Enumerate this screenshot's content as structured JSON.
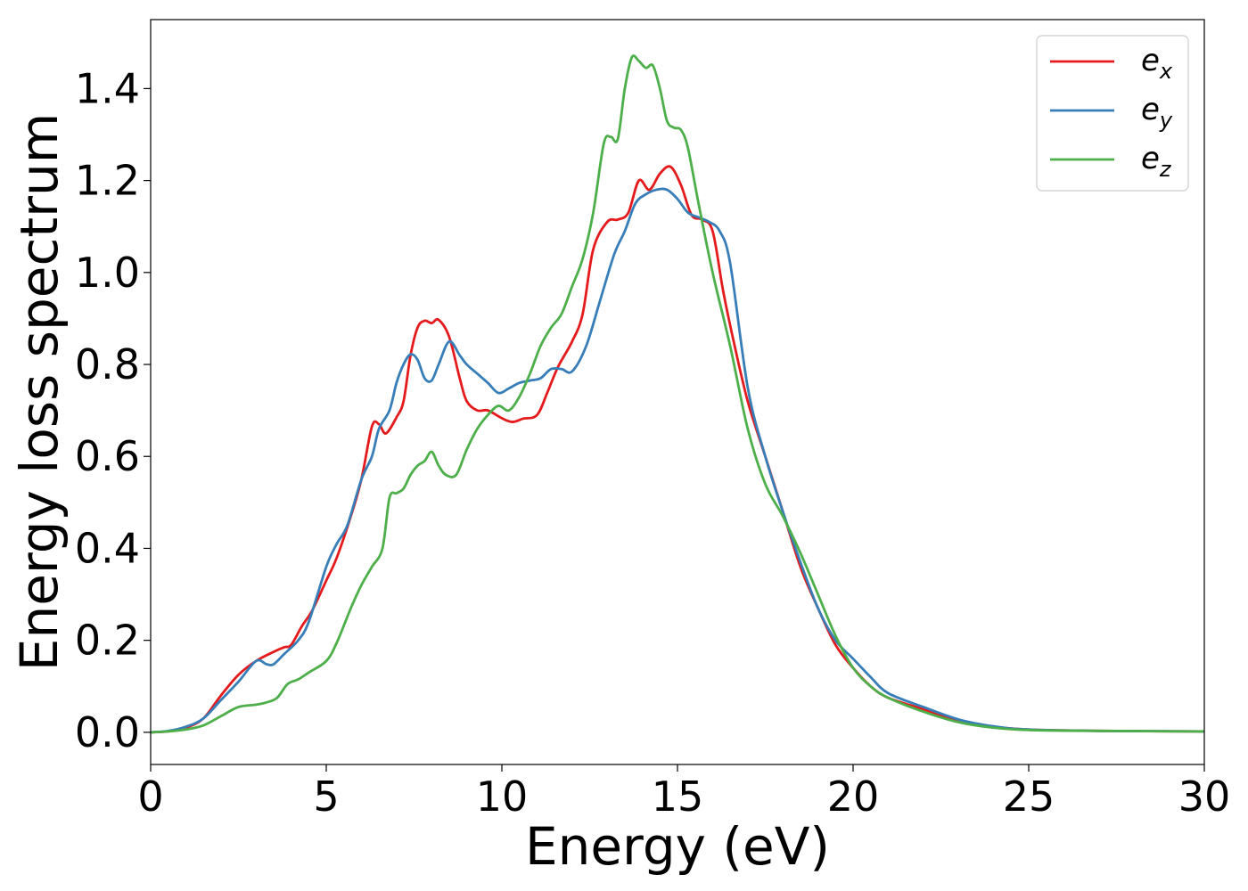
{
  "chart_data": {
    "type": "line",
    "title": "",
    "xlabel": "Energy (eV)",
    "ylabel": "Energy loss spectrum",
    "xlim": [
      0,
      30
    ],
    "ylim": [
      -0.07,
      1.55
    ],
    "xticks": [
      0,
      5,
      10,
      15,
      20,
      25,
      30
    ],
    "yticks": [
      0.0,
      0.2,
      0.4,
      0.6,
      0.8,
      1.0,
      1.2,
      1.4
    ],
    "grid": false,
    "legend_position": "top-right",
    "series": [
      {
        "name": "e_x",
        "base": "e",
        "sub": "x",
        "color": "#e41a1c",
        "x": [
          0,
          0.5,
          1,
          1.5,
          2,
          2.5,
          3,
          3.5,
          3.8,
          4,
          4.3,
          4.6,
          5,
          5.3,
          5.7,
          6,
          6.3,
          6.5,
          6.7,
          7,
          7.2,
          7.4,
          7.6,
          7.8,
          8,
          8.2,
          8.5,
          8.8,
          9,
          9.3,
          9.6,
          10,
          10.3,
          10.6,
          11,
          11.3,
          11.6,
          12,
          12.3,
          12.6,
          13,
          13.3,
          13.6,
          13.9,
          14.2,
          14.5,
          14.8,
          15.1,
          15.4,
          15.7,
          16,
          16.3,
          16.6,
          17,
          17.5,
          18,
          18.5,
          19,
          19.5,
          20,
          20.5,
          21,
          22,
          23,
          24,
          25,
          27,
          30
        ],
        "values": [
          0,
          0.002,
          0.01,
          0.03,
          0.08,
          0.125,
          0.155,
          0.175,
          0.185,
          0.19,
          0.23,
          0.265,
          0.33,
          0.38,
          0.47,
          0.55,
          0.665,
          0.67,
          0.65,
          0.685,
          0.72,
          0.82,
          0.88,
          0.895,
          0.89,
          0.897,
          0.86,
          0.77,
          0.72,
          0.7,
          0.7,
          0.683,
          0.675,
          0.682,
          0.69,
          0.74,
          0.795,
          0.85,
          0.91,
          1.05,
          1.11,
          1.115,
          1.13,
          1.2,
          1.18,
          1.215,
          1.23,
          1.19,
          1.125,
          1.115,
          1.09,
          0.96,
          0.85,
          0.72,
          0.6,
          0.48,
          0.36,
          0.27,
          0.19,
          0.14,
          0.1,
          0.075,
          0.05,
          0.025,
          0.012,
          0.006,
          0.003,
          0.002
        ]
      },
      {
        "name": "e_y",
        "base": "e",
        "sub": "y",
        "color": "#377eb8",
        "x": [
          0,
          0.5,
          1,
          1.5,
          2,
          2.5,
          3,
          3.3,
          3.5,
          3.8,
          4.2,
          4.5,
          5,
          5.3,
          5.6,
          6,
          6.3,
          6.5,
          6.8,
          7,
          7.2,
          7.4,
          7.6,
          7.8,
          8,
          8.2,
          8.5,
          8.8,
          9,
          9.3,
          9.6,
          9.9,
          10.2,
          10.5,
          10.8,
          11.1,
          11.4,
          11.7,
          12,
          12.4,
          12.8,
          13.2,
          13.5,
          13.8,
          14.1,
          14.4,
          14.7,
          15,
          15.3,
          15.6,
          15.9,
          16.2,
          16.5,
          17,
          17.5,
          18,
          18.5,
          19,
          19.5,
          20,
          20.5,
          21,
          22,
          23,
          24,
          25,
          27,
          30
        ],
        "values": [
          0,
          0.003,
          0.012,
          0.03,
          0.07,
          0.11,
          0.155,
          0.148,
          0.148,
          0.17,
          0.2,
          0.24,
          0.36,
          0.41,
          0.45,
          0.55,
          0.6,
          0.66,
          0.7,
          0.76,
          0.8,
          0.822,
          0.81,
          0.77,
          0.765,
          0.8,
          0.85,
          0.82,
          0.8,
          0.78,
          0.76,
          0.738,
          0.748,
          0.76,
          0.765,
          0.77,
          0.79,
          0.79,
          0.785,
          0.84,
          0.94,
          1.04,
          1.09,
          1.15,
          1.17,
          1.18,
          1.18,
          1.16,
          1.13,
          1.12,
          1.11,
          1.09,
          1.02,
          0.75,
          0.6,
          0.48,
          0.37,
          0.27,
          0.2,
          0.16,
          0.12,
          0.085,
          0.055,
          0.028,
          0.013,
          0.006,
          0.003,
          0.002
        ]
      },
      {
        "name": "e_z",
        "base": "e",
        "sub": "z",
        "color": "#4daf4a",
        "x": [
          0,
          0.5,
          1,
          1.5,
          2,
          2.5,
          3,
          3.3,
          3.6,
          3.9,
          4.2,
          4.5,
          5,
          5.3,
          5.7,
          6,
          6.3,
          6.6,
          6.8,
          7,
          7.2,
          7.4,
          7.6,
          7.8,
          8,
          8.2,
          8.4,
          8.7,
          9,
          9.3,
          9.6,
          9.9,
          10.2,
          10.5,
          10.8,
          11.1,
          11.4,
          11.7,
          12,
          12.3,
          12.6,
          12.9,
          13.1,
          13.3,
          13.5,
          13.7,
          13.9,
          14.1,
          14.3,
          14.5,
          14.7,
          14.9,
          15.1,
          15.3,
          15.6,
          16,
          16.5,
          17,
          17.5,
          18,
          18.5,
          19,
          19.5,
          20,
          20.5,
          21,
          22,
          23,
          24,
          25,
          27,
          30
        ],
        "values": [
          0,
          0.002,
          0.006,
          0.015,
          0.035,
          0.055,
          0.06,
          0.065,
          0.075,
          0.105,
          0.115,
          0.13,
          0.155,
          0.195,
          0.27,
          0.32,
          0.36,
          0.4,
          0.51,
          0.52,
          0.53,
          0.56,
          0.58,
          0.59,
          0.61,
          0.58,
          0.56,
          0.56,
          0.615,
          0.66,
          0.69,
          0.71,
          0.7,
          0.73,
          0.78,
          0.84,
          0.88,
          0.91,
          0.97,
          1.03,
          1.13,
          1.28,
          1.295,
          1.29,
          1.4,
          1.468,
          1.46,
          1.445,
          1.45,
          1.4,
          1.33,
          1.315,
          1.31,
          1.27,
          1.15,
          1.0,
          0.84,
          0.66,
          0.54,
          0.47,
          0.39,
          0.3,
          0.21,
          0.14,
          0.1,
          0.075,
          0.045,
          0.022,
          0.01,
          0.005,
          0.003,
          0.002
        ]
      }
    ]
  }
}
